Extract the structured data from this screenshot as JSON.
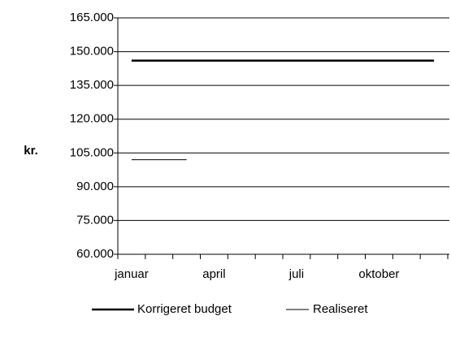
{
  "chart_data": {
    "type": "line",
    "axis_label": "kr.",
    "categories": [
      "januar",
      null,
      null,
      "april",
      null,
      null,
      "juli",
      null,
      null,
      "oktober",
      null,
      null
    ],
    "series": [
      {
        "name": "Korrigeret budget",
        "color": "#000000",
        "width": 2.5,
        "values": [
          146000,
          146000,
          146000,
          146000,
          146000,
          146000,
          146000,
          146000,
          146000,
          146000,
          146000,
          146000
        ]
      },
      {
        "name": "Realiseret",
        "color": "#000000",
        "width": 1,
        "values": [
          102000,
          102000,
          102000,
          null,
          null,
          null,
          null,
          null,
          null,
          null,
          null,
          null
        ]
      }
    ],
    "ylim": [
      60000,
      165000
    ],
    "yticks": [
      {
        "value": 60000,
        "label": "60.000"
      },
      {
        "value": 75000,
        "label": "75.000"
      },
      {
        "value": 90000,
        "label": "90.000"
      },
      {
        "value": 105000,
        "label": "105.000"
      },
      {
        "value": 120000,
        "label": "120.000"
      },
      {
        "value": 135000,
        "label": "135.000"
      },
      {
        "value": 150000,
        "label": "150.000"
      },
      {
        "value": 165000,
        "label": "165.000"
      }
    ],
    "grid": true,
    "legend": "bottom"
  }
}
